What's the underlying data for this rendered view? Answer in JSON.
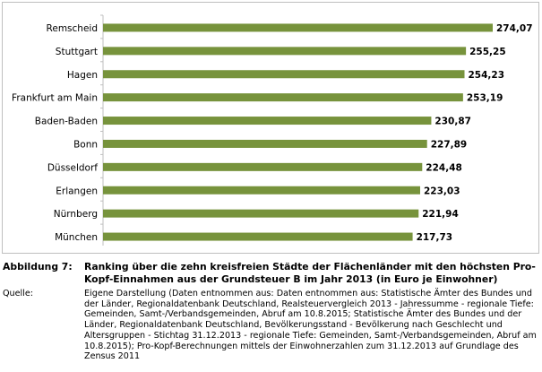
{
  "chart_data": {
    "type": "bar",
    "orientation": "horizontal",
    "categories": [
      "Remscheid",
      "Stuttgart",
      "Hagen",
      "Frankfurt am Main",
      "Baden-Baden",
      "Bonn",
      "Düsseldorf",
      "Erlangen",
      "Nürnberg",
      "München"
    ],
    "values": [
      274.07,
      255.25,
      254.23,
      253.19,
      230.87,
      227.89,
      224.48,
      223.03,
      221.94,
      217.73
    ],
    "value_labels": [
      "274,07",
      "255,25",
      "254,23",
      "253,19",
      "230,87",
      "227,89",
      "224,48",
      "223,03",
      "221,94",
      "217,73"
    ],
    "xlim": [
      0,
      274.07
    ],
    "bar_color": "#77933c",
    "grid": false,
    "legend": "none"
  },
  "caption": {
    "label": "Abbildung 7:",
    "text": "Ranking über die zehn kreisfreien Städte der Flächenländer mit den höchsten Pro-Kopf-Einnahmen aus der Grundsteuer B im Jahr 2013 (in Euro je Einwohner)"
  },
  "source": {
    "label": "Quelle:",
    "text": "Eigene Darstellung (Daten entnommen aus: Daten entnommen aus: Statistische Ämter des Bundes und der Länder, Regionaldatenbank Deutschland, Realsteuervergleich 2013 - Jahressumme - regionale Tiefe: Gemeinden, Samt-/Verbandsgemeinden, Abruf am 10.8.2015; Statistische Ämter des Bundes und der Länder, Regionaldatenbank Deutschland, Bevölkerungsstand - Bevölkerung nach Geschlecht und Altersgruppen - Stichtag 31.12.2013 - regionale Tiefe: Gemeinden, Samt-/Verbandsgemeinden, Abruf am 10.8.2015); Pro-Kopf-Berechnungen mittels der Einwohnerzahlen zum 31.12.2013 auf Grundlage des Zensus 2011"
  }
}
